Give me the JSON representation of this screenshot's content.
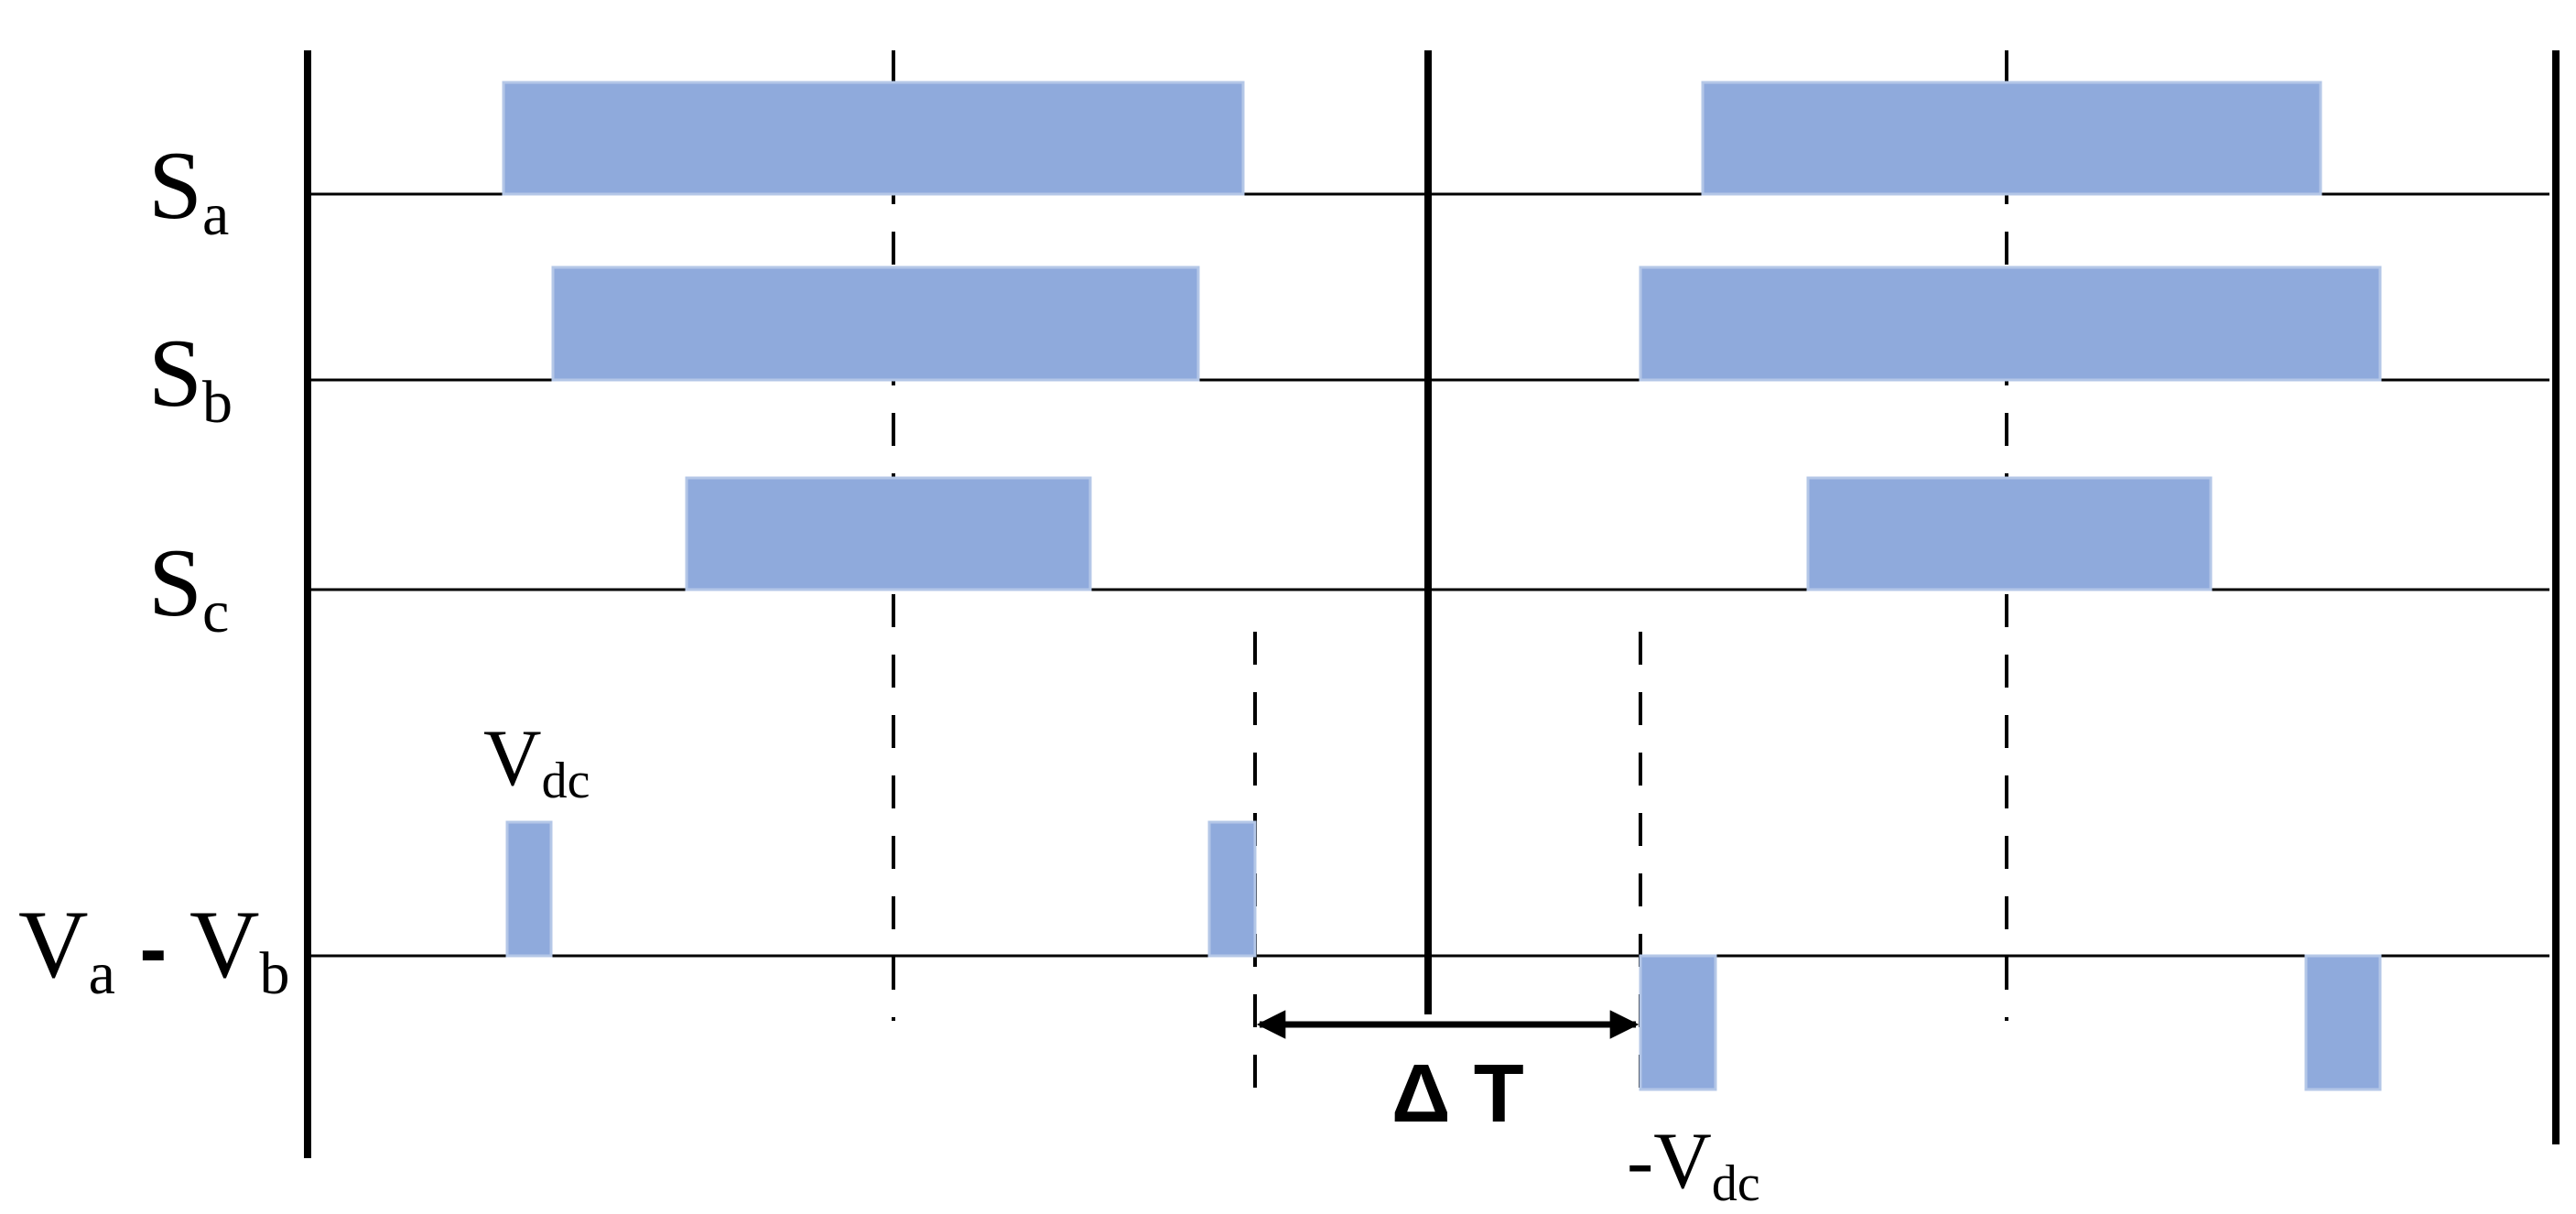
{
  "signals": [
    {
      "id": "sa",
      "main": "S",
      "sub": "a"
    },
    {
      "id": "sb",
      "main": "S",
      "sub": "b"
    },
    {
      "id": "sc",
      "main": "S",
      "sub": "c"
    }
  ],
  "difference": {
    "term1_main": "V",
    "term1_sub": "a",
    "minus": "-",
    "term2_main": "V",
    "term2_sub": "b"
  },
  "pulse_labels": {
    "positive_main": "V",
    "positive_sub": "dc",
    "negative_main": "-V",
    "negative_sub": "dc"
  },
  "interval": {
    "delta": "Δ",
    "letter": "T"
  },
  "colors": {
    "pulse_fill": "#8FAADC",
    "pulse_stroke": "#B4C7E7",
    "line": "#000000"
  }
}
